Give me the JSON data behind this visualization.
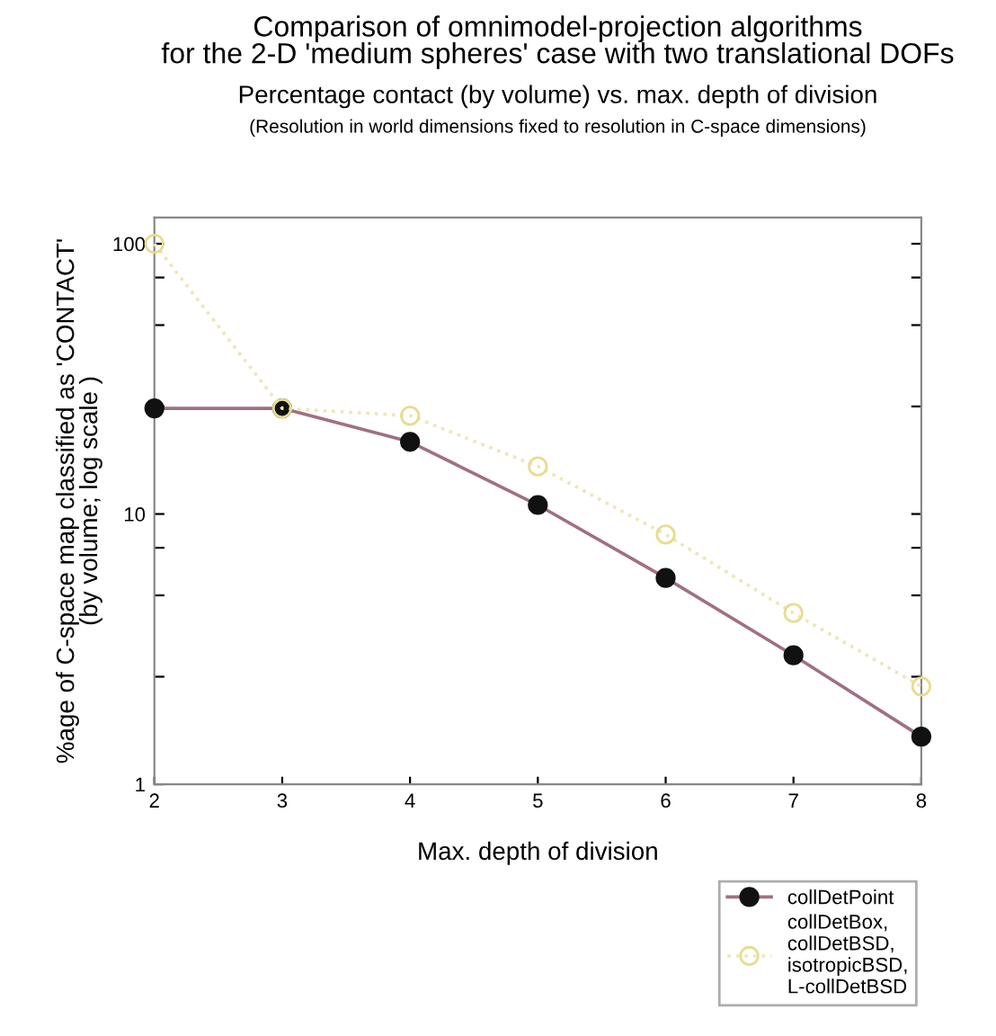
{
  "chart_data": {
    "type": "line",
    "title": "Comparison of omnimodel-projection algorithms\nfor the 2-D 'medium spheres' case with two translational DOFs",
    "subtitle": "Percentage contact (by volume) vs. max. depth of division",
    "annotations": [
      "(Resolution in world dimensions fixed to resolution in C-space dimensions)"
    ],
    "xlabel": "Max. depth of division",
    "ylabel": "%age of C-space map classified as 'CONTACT'\n(by volume; log scale )",
    "x": [
      2,
      3,
      4,
      5,
      6,
      7,
      8
    ],
    "series": [
      {
        "name": "collDetPoint",
        "color": "#a07080",
        "marker": "circle",
        "line_style": "solid",
        "values": [
          24.6,
          24.6,
          18.5,
          10.8,
          5.8,
          3.0,
          1.5
        ]
      },
      {
        "name": "collDetBox,\ncollDetBSD,\nisotropicBSD,\nL-collDetBSD",
        "color": "#efe6b8",
        "marker": "circle",
        "line_style": "dotted",
        "values": [
          100,
          24.6,
          23.1,
          15.0,
          8.4,
          4.3,
          2.3
        ]
      }
    ],
    "log": "y",
    "xlim": [
      2,
      8
    ],
    "xticks": [
      2,
      3,
      4,
      5,
      6,
      7,
      8
    ],
    "ylim": [
      1,
      125
    ],
    "yticks": [
      1,
      {
        "value": 2.5,
        "label": null
      },
      {
        "value": 5,
        "label": null
      },
      {
        "value": 7.5,
        "label": null
      },
      10,
      {
        "value": 25,
        "label": null
      },
      {
        "value": 50,
        "label": null
      },
      {
        "value": 75,
        "label": null
      },
      100
    ],
    "grid": false,
    "legend": "bottom right"
  }
}
